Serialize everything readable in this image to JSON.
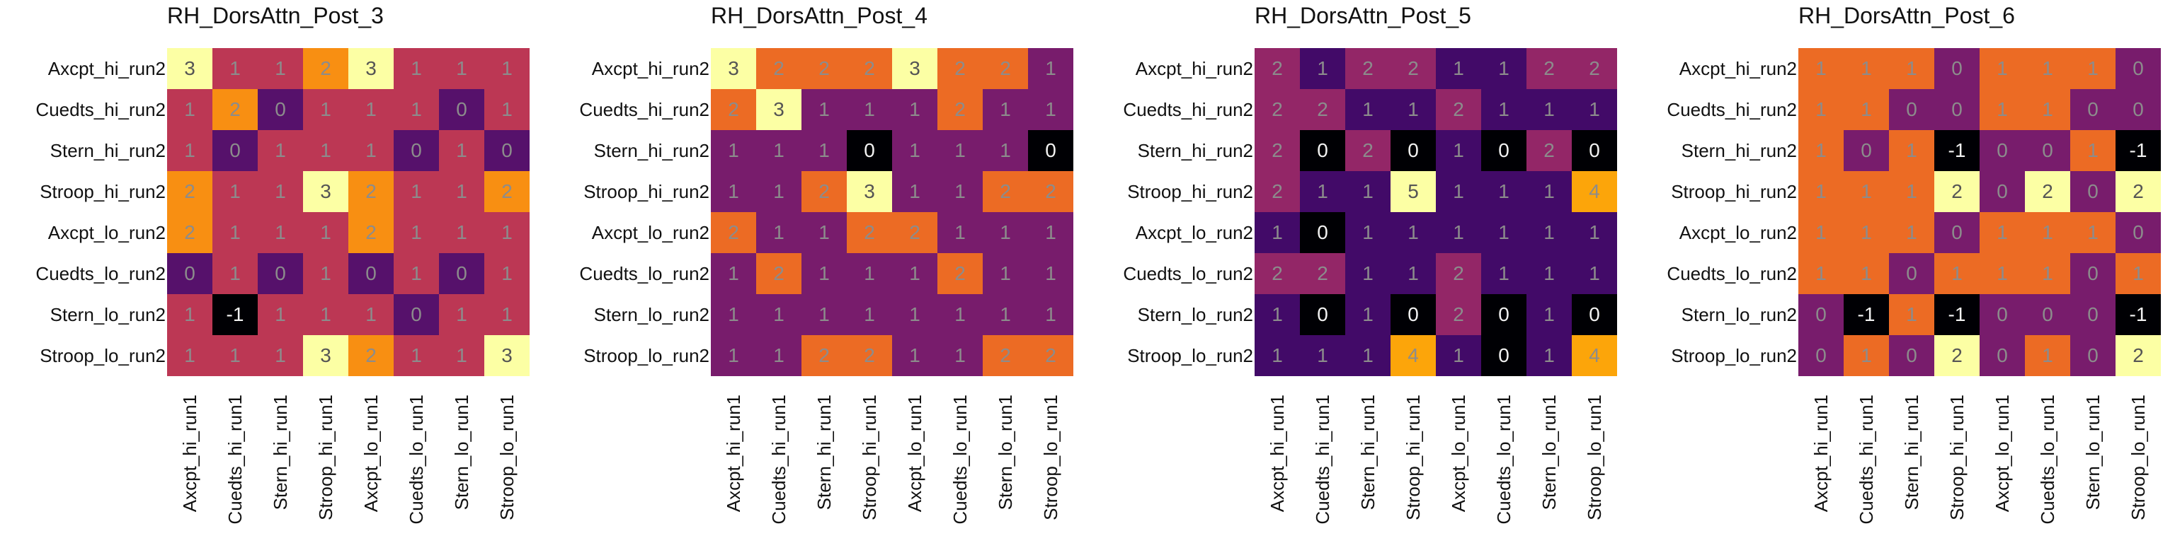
{
  "chart_data": [
    {
      "type": "heatmap",
      "title": "RH_DorsAttn_Post_3",
      "rows": [
        "Axcpt_hi_run2",
        "Cuedts_hi_run2",
        "Stern_hi_run2",
        "Stroop_hi_run2",
        "Axcpt_lo_run2",
        "Cuedts_lo_run2",
        "Stern_lo_run2",
        "Stroop_lo_run2"
      ],
      "cols": [
        "Axcpt_hi_run1",
        "Cuedts_hi_run1",
        "Stern_hi_run1",
        "Stroop_hi_run1",
        "Axcpt_lo_run1",
        "Cuedts_lo_run1",
        "Stern_lo_run1",
        "Stroop_lo_run1"
      ],
      "values": [
        [
          3,
          1,
          1,
          2,
          3,
          1,
          1,
          1
        ],
        [
          1,
          2,
          0,
          1,
          1,
          1,
          0,
          1
        ],
        [
          1,
          0,
          1,
          1,
          1,
          0,
          1,
          0
        ],
        [
          2,
          1,
          1,
          3,
          2,
          1,
          1,
          2
        ],
        [
          2,
          1,
          1,
          1,
          2,
          1,
          1,
          1
        ],
        [
          0,
          1,
          0,
          1,
          0,
          1,
          0,
          1
        ],
        [
          1,
          -1,
          1,
          1,
          1,
          0,
          1,
          1
        ],
        [
          1,
          1,
          1,
          3,
          2,
          1,
          1,
          3
        ]
      ],
      "vmin": -1,
      "vmax": 3,
      "colormap": "inferno"
    },
    {
      "type": "heatmap",
      "title": "RH_DorsAttn_Post_4",
      "rows": [
        "Axcpt_hi_run2",
        "Cuedts_hi_run2",
        "Stern_hi_run2",
        "Stroop_hi_run2",
        "Axcpt_lo_run2",
        "Cuedts_lo_run2",
        "Stern_lo_run2",
        "Stroop_lo_run2"
      ],
      "cols": [
        "Axcpt_hi_run1",
        "Cuedts_hi_run1",
        "Stern_hi_run1",
        "Stroop_hi_run1",
        "Axcpt_lo_run1",
        "Cuedts_lo_run1",
        "Stern_lo_run1",
        "Stroop_lo_run1"
      ],
      "values": [
        [
          3,
          2,
          2,
          2,
          3,
          2,
          2,
          1
        ],
        [
          2,
          3,
          1,
          1,
          1,
          2,
          1,
          1
        ],
        [
          1,
          1,
          1,
          0,
          1,
          1,
          1,
          0
        ],
        [
          1,
          1,
          2,
          3,
          1,
          1,
          2,
          2
        ],
        [
          2,
          1,
          1,
          2,
          2,
          1,
          1,
          1
        ],
        [
          1,
          2,
          1,
          1,
          1,
          2,
          1,
          1
        ],
        [
          1,
          1,
          1,
          1,
          1,
          1,
          1,
          1
        ],
        [
          1,
          1,
          2,
          2,
          1,
          1,
          2,
          2
        ]
      ],
      "vmin": 0,
      "vmax": 3,
      "colormap": "inferno"
    },
    {
      "type": "heatmap",
      "title": "RH_DorsAttn_Post_5",
      "rows": [
        "Axcpt_hi_run2",
        "Cuedts_hi_run2",
        "Stern_hi_run2",
        "Stroop_hi_run2",
        "Axcpt_lo_run2",
        "Cuedts_lo_run2",
        "Stern_lo_run2",
        "Stroop_lo_run2"
      ],
      "cols": [
        "Axcpt_hi_run1",
        "Cuedts_hi_run1",
        "Stern_hi_run1",
        "Stroop_hi_run1",
        "Axcpt_lo_run1",
        "Cuedts_lo_run1",
        "Stern_lo_run1",
        "Stroop_lo_run1"
      ],
      "values": [
        [
          2,
          1,
          2,
          2,
          1,
          1,
          2,
          2
        ],
        [
          2,
          2,
          1,
          1,
          2,
          1,
          1,
          1
        ],
        [
          2,
          0,
          2,
          0,
          1,
          0,
          2,
          0
        ],
        [
          2,
          1,
          1,
          5,
          1,
          1,
          1,
          4
        ],
        [
          1,
          0,
          1,
          1,
          1,
          1,
          1,
          1
        ],
        [
          2,
          2,
          1,
          1,
          2,
          1,
          1,
          1
        ],
        [
          1,
          0,
          1,
          0,
          2,
          0,
          1,
          0
        ],
        [
          1,
          1,
          1,
          4,
          1,
          0,
          1,
          4
        ]
      ],
      "vmin": 0,
      "vmax": 5,
      "colormap": "inferno"
    },
    {
      "type": "heatmap",
      "title": "RH_DorsAttn_Post_6",
      "rows": [
        "Axcpt_hi_run2",
        "Cuedts_hi_run2",
        "Stern_hi_run2",
        "Stroop_hi_run2",
        "Axcpt_lo_run2",
        "Cuedts_lo_run2",
        "Stern_lo_run2",
        "Stroop_lo_run2"
      ],
      "cols": [
        "Axcpt_hi_run1",
        "Cuedts_hi_run1",
        "Stern_hi_run1",
        "Stroop_hi_run1",
        "Axcpt_lo_run1",
        "Cuedts_lo_run1",
        "Stern_lo_run1",
        "Stroop_lo_run1"
      ],
      "values": [
        [
          1,
          1,
          1,
          0,
          1,
          1,
          1,
          0
        ],
        [
          1,
          1,
          0,
          0,
          1,
          1,
          0,
          0
        ],
        [
          1,
          0,
          1,
          -1,
          0,
          0,
          1,
          -1
        ],
        [
          1,
          1,
          1,
          2,
          0,
          2,
          0,
          2
        ],
        [
          1,
          1,
          1,
          0,
          1,
          1,
          1,
          0
        ],
        [
          1,
          1,
          0,
          1,
          1,
          1,
          0,
          1
        ],
        [
          0,
          -1,
          1,
          -1,
          0,
          0,
          0,
          -1
        ],
        [
          0,
          1,
          0,
          2,
          0,
          1,
          0,
          2
        ]
      ],
      "vmin": -1,
      "vmax": 2,
      "colormap": "inferno"
    }
  ]
}
